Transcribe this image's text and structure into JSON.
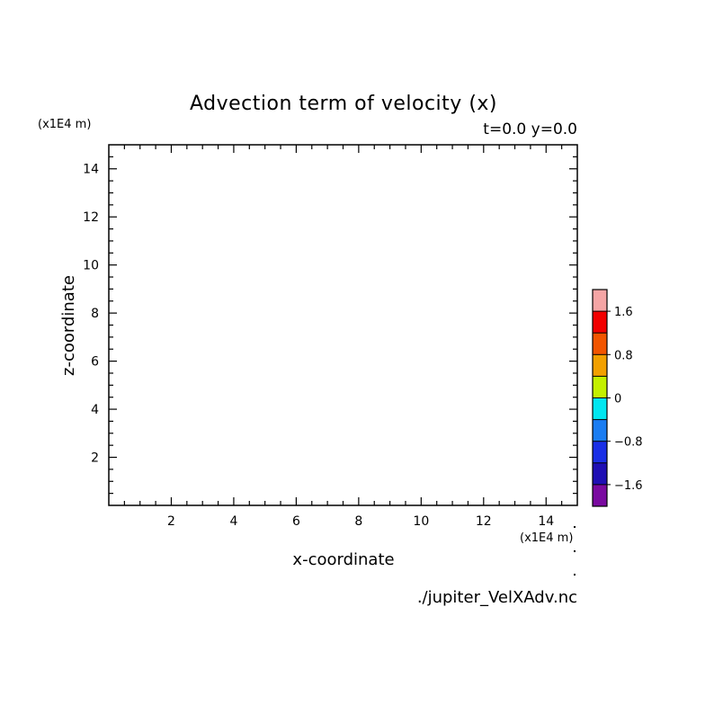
{
  "chart_data": {
    "type": "heatmap",
    "title": "Advection term of velocity (x)",
    "subtitle": "t=0.0 y=0.0",
    "xlabel": "x-coordinate",
    "ylabel": "z-coordinate",
    "x_unit": "(x1E4 m)",
    "y_unit": "(x1E4 m)",
    "xlim": [
      0,
      15
    ],
    "ylim": [
      0,
      15
    ],
    "x_ticks": [
      2,
      4,
      6,
      8,
      10,
      12,
      14
    ],
    "y_ticks": [
      2,
      4,
      6,
      8,
      10,
      12,
      14
    ],
    "x_tick_labels": [
      "2",
      "4",
      "6",
      "8",
      "10",
      "12",
      "14"
    ],
    "y_tick_labels": [
      "2",
      "4",
      "6",
      "8",
      "10",
      "12",
      "14"
    ],
    "source_file": "./jupiter_VelXAdv.nc",
    "colorbar": {
      "range": [
        -2.0,
        2.0
      ],
      "levels": [
        -2.0,
        -1.6,
        -1.2,
        -0.8,
        -0.4,
        0,
        0.4,
        0.8,
        1.2,
        1.6,
        2.0
      ],
      "colors": [
        "#7a0aa0",
        "#1f0fb4",
        "#1a2fe6",
        "#1a7df2",
        "#00e6f0",
        "#c4f000",
        "#f2a000",
        "#f25500",
        "#f20000",
        "#f5a5a5"
      ],
      "tick_values": [
        -1.6,
        -0.8,
        0,
        0.8,
        1.6
      ],
      "tick_labels": [
        "−1.6",
        "−0.8",
        "0",
        "0.8",
        "1.6"
      ]
    }
  }
}
